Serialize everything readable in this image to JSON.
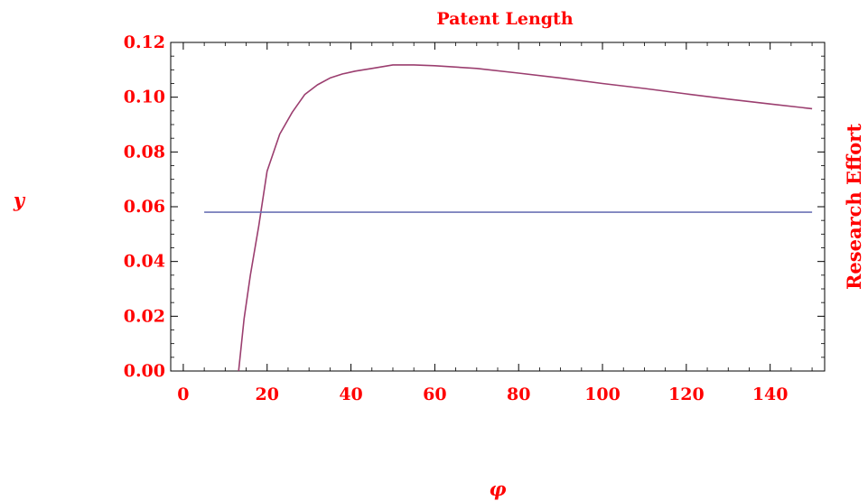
{
  "chart_data": {
    "type": "line",
    "title": "Patent Length",
    "xlabel": "φ",
    "ylabel": "y",
    "ylabel_right": "Research Effort",
    "xlim": [
      -3,
      153
    ],
    "ylim": [
      0,
      0.12
    ],
    "x_ticks": [
      {
        "value": 0,
        "label": "0"
      },
      {
        "value": 20,
        "label": "20"
      },
      {
        "value": 40,
        "label": "40"
      },
      {
        "value": 60,
        "label": "60"
      },
      {
        "value": 80,
        "label": "80"
      },
      {
        "value": 100,
        "label": "100"
      },
      {
        "value": 120,
        "label": "120"
      },
      {
        "value": 140,
        "label": "140"
      }
    ],
    "y_ticks": [
      {
        "value": 0,
        "label": "0.00"
      },
      {
        "value": 0.02,
        "label": "0.02"
      },
      {
        "value": 0.04,
        "label": "0.04"
      },
      {
        "value": 0.06,
        "label": "0.06"
      },
      {
        "value": 0.08,
        "label": "0.08"
      },
      {
        "value": 0.1,
        "label": "0.10"
      },
      {
        "value": 0.12,
        "label": "0.12"
      }
    ],
    "grid": false,
    "series": [
      {
        "color": "#9b3e6f",
        "x": [
          13.2,
          14.5,
          16,
          18,
          20,
          23,
          26,
          29,
          32,
          35,
          38,
          41,
          45,
          50,
          55,
          60,
          70,
          80,
          90,
          100,
          110,
          120,
          130,
          140,
          150
        ],
        "y": [
          0.0,
          0.019,
          0.035,
          0.053,
          0.073,
          0.0865,
          0.0945,
          0.101,
          0.1045,
          0.107,
          0.1085,
          0.1095,
          0.1105,
          0.1118,
          0.1118,
          0.1115,
          0.1105,
          0.1088,
          0.107,
          0.105,
          0.1032,
          0.1012,
          0.0993,
          0.0975,
          0.0958
        ]
      },
      {
        "color": "#6b73b5",
        "x": [
          5,
          150
        ],
        "y": [
          0.058,
          0.058
        ]
      }
    ]
  },
  "colors": {
    "text": "#ff0000",
    "frame": "#000000"
  }
}
